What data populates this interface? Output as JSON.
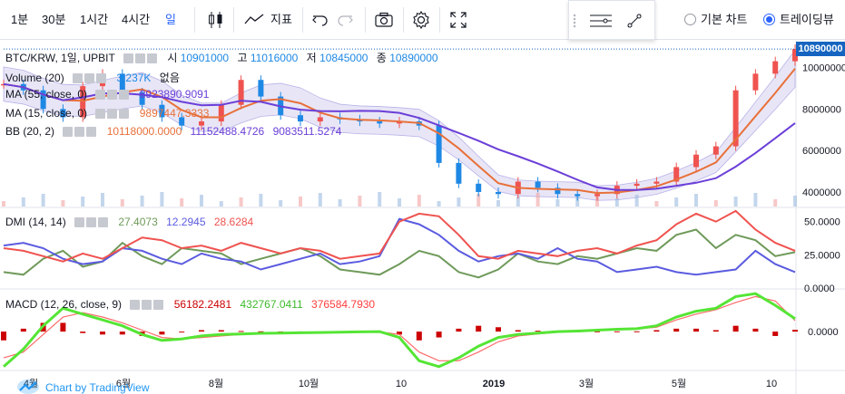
{
  "toolbar": {
    "intervals": [
      {
        "label": "1분",
        "active": false
      },
      {
        "label": "30분",
        "active": false
      },
      {
        "label": "1시간",
        "active": false
      },
      {
        "label": "4시간",
        "active": false
      },
      {
        "label": "일",
        "active": true
      }
    ],
    "indicator_label": "지표",
    "chart_type_options": [
      {
        "label": "기본 차트",
        "selected": false
      },
      {
        "label": "트레이딩뷰",
        "selected": true
      }
    ],
    "icons": [
      "candles-icon",
      "indicator-icon",
      "undo-icon",
      "redo-icon",
      "camera-icon",
      "gear-icon",
      "fullscreen-icon",
      "lines-settings-icon",
      "drawing-tool-icon"
    ]
  },
  "main_legend": {
    "symbol": "BTC/KRW, 1일, UPBIT",
    "open_label": "시",
    "open": "10901000",
    "high_label": "고",
    "high": "11016000",
    "low_label": "저",
    "low": "10845000",
    "close_label": "종",
    "close": "10890000",
    "volume_label": "Volume (20)",
    "volume": "3.237K",
    "volume_ma": "없음",
    "ma1_label": "MA (55, close, 0)",
    "ma1": "8923890.9091",
    "ma2_label": "MA (15, close, 0)",
    "ma2": "9897447.3333",
    "bb_label": "BB (20, 2)",
    "bb_basis": "10118000.0000",
    "bb_upper": "11152488.4726",
    "bb_lower": "9083511.5274"
  },
  "dmi_legend": {
    "label": "DMI (14, 14)",
    "v1": "27.4073",
    "v2": "12.2945",
    "v3": "28.6284"
  },
  "macd_legend": {
    "label": "MACD (12, 26, close, 9)",
    "v1": "56182.2481",
    "v2": "432767.0411",
    "v3": "376584.7930"
  },
  "price_tag": "10890000",
  "axes": {
    "price_ticks": [
      "10000000",
      "8000000",
      "6000000",
      "4000000"
    ],
    "dmi_ticks": [
      "50.0000",
      "25.0000",
      "0.0000"
    ],
    "macd_ticks": [
      "0.0000"
    ],
    "x_ticks": [
      "4월",
      "6월",
      "8월",
      "10월",
      "10",
      "2019",
      "3월",
      "5월",
      "10"
    ]
  },
  "brand_label": "Chart by TradingView",
  "colors": {
    "accent": "#2962ff",
    "up": "#ef5350",
    "down": "#1e88e5",
    "ma_fast": "#e8703a",
    "ma_slow": "#6b3fd8",
    "bb_fill": "#d6d3f0",
    "bb_line": "#7b74d6",
    "dmi_plus": "#ef5350",
    "dmi_minus": "#5b5be0",
    "adx": "#6f9a5a",
    "macd_line": "#55e535",
    "signal": "#ff6b6b",
    "hist": "#cc0000"
  },
  "chart_data": {
    "type": "line",
    "x_ticks": [
      "4월",
      "6월",
      "8월",
      "10월",
      "10",
      "2019",
      "3월",
      "5월",
      "10"
    ],
    "price_ylim": [
      3300000,
      11200000
    ],
    "price_close": [
      9200000,
      8900000,
      8000000,
      7600000,
      9100000,
      9700000,
      8800000,
      8200000,
      7600000,
      7200000,
      7400000,
      8200000,
      9400000,
      8600000,
      7700000,
      7400000,
      7600000,
      7500000,
      7400000,
      7300000,
      7400000,
      7200000,
      5400000,
      4400000,
      4000000,
      3900000,
      4500000,
      4200000,
      3900000,
      3800000,
      3900000,
      4300000,
      4400000,
      4500000,
      5200000,
      5800000,
      6200000,
      8900000,
      9700000,
      10300000,
      10890000
    ],
    "dmi": {
      "ylim": [
        0,
        60
      ],
      "plus": [
        30,
        28,
        24,
        20,
        26,
        22,
        30,
        38,
        36,
        30,
        32,
        28,
        34,
        30,
        26,
        30,
        28,
        22,
        24,
        26,
        50,
        56,
        54,
        40,
        24,
        22,
        28,
        26,
        24,
        28,
        30,
        26,
        32,
        36,
        48,
        56,
        50,
        58,
        44,
        34,
        28
      ],
      "minus": [
        32,
        34,
        30,
        22,
        18,
        20,
        30,
        28,
        22,
        18,
        26,
        22,
        20,
        14,
        18,
        22,
        26,
        18,
        20,
        24,
        52,
        48,
        40,
        28,
        20,
        24,
        26,
        22,
        30,
        22,
        20,
        12,
        14,
        16,
        12,
        10,
        12,
        14,
        28,
        18,
        12
      ],
      "adx": [
        12,
        10,
        22,
        28,
        16,
        20,
        34,
        24,
        18,
        30,
        28,
        26,
        18,
        22,
        26,
        30,
        24,
        14,
        12,
        10,
        18,
        28,
        24,
        12,
        8,
        14,
        26,
        20,
        18,
        24,
        22,
        26,
        30,
        28,
        40,
        44,
        30,
        40,
        36,
        24,
        27
      ]
    },
    "macd": {
      "ylim": [
        -1300000,
        1400000
      ],
      "macd": [
        -1200000,
        -600000,
        200000,
        800000,
        600000,
        400000,
        200000,
        -100000,
        -300000,
        -250000,
        -150000,
        -100000,
        -80000,
        -60000,
        -50000,
        -40000,
        -30000,
        -20000,
        -10000,
        0,
        -200000,
        -1000000,
        -1200000,
        -900000,
        -500000,
        -200000,
        -100000,
        -50000,
        0,
        20000,
        50000,
        80000,
        100000,
        200000,
        500000,
        700000,
        800000,
        1200000,
        1300000,
        900000,
        440000
      ],
      "signal": [
        -900000,
        -700000,
        -100000,
        500000,
        650000,
        500000,
        300000,
        50000,
        -200000,
        -250000,
        -200000,
        -150000,
        -100000,
        -70000,
        -55000,
        -45000,
        -35000,
        -25000,
        -15000,
        -5000,
        -100000,
        -700000,
        -1000000,
        -1000000,
        -700000,
        -350000,
        -150000,
        -80000,
        -20000,
        10000,
        40000,
        70000,
        90000,
        150000,
        400000,
        600000,
        750000,
        1000000,
        1200000,
        1050000,
        380000
      ]
    }
  }
}
